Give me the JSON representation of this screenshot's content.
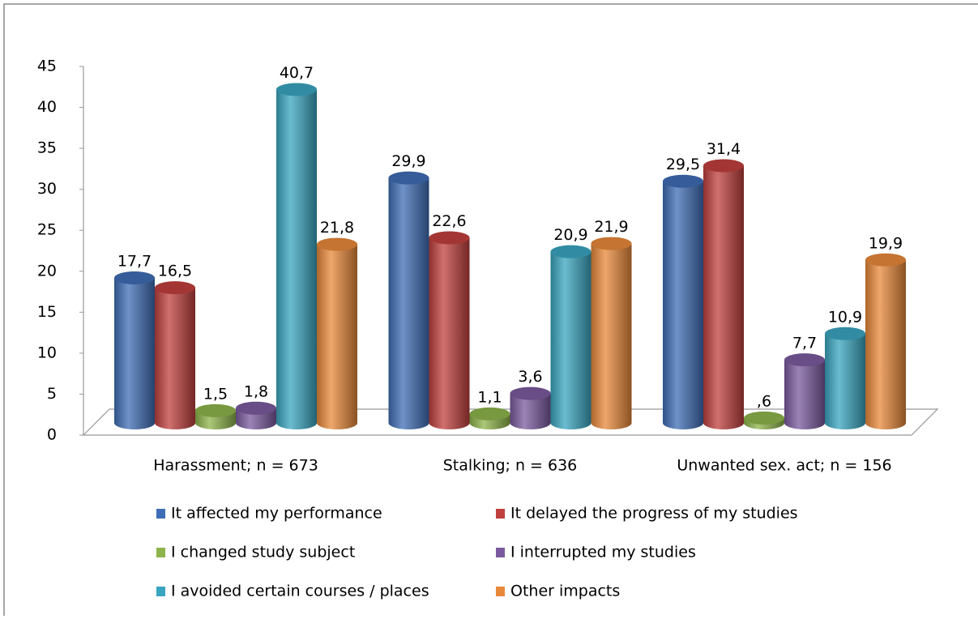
{
  "chart_data": {
    "type": "bar",
    "categories": [
      "Harassment; n = 673",
      "Stalking; n = 636",
      "Unwanted sex. act; n = 156"
    ],
    "series": [
      {
        "name": "It affected my performance",
        "color": "#3f6db5",
        "values": [
          17.7,
          29.9,
          29.5
        ],
        "value_labels": [
          "17,7",
          "29,9",
          "29,5"
        ]
      },
      {
        "name": "It delayed the progress of my studies",
        "color": "#c0403d",
        "values": [
          16.5,
          22.6,
          31.4
        ],
        "value_labels": [
          "16,5",
          "22,6",
          "31,4"
        ]
      },
      {
        "name": "I changed study subject",
        "color": "#8db44a",
        "values": [
          1.5,
          1.1,
          0.6
        ],
        "value_labels": [
          "1,5",
          "1,1",
          ",6"
        ]
      },
      {
        "name": "I interrupted my studies",
        "color": "#7a5a9e",
        "values": [
          1.8,
          3.6,
          7.7
        ],
        "value_labels": [
          "1,8",
          "3,6",
          "7,7"
        ]
      },
      {
        "name": "I avoided certain courses / places",
        "color": "#3aa5c0",
        "values": [
          40.7,
          20.9,
          10.9
        ],
        "value_labels": [
          "40,7",
          "20,9",
          "10,9"
        ]
      },
      {
        "name": "Other impacts",
        "color": "#e8883a",
        "values": [
          21.8,
          21.9,
          19.9
        ],
        "value_labels": [
          "21,8",
          "21,9",
          "19,9"
        ]
      }
    ],
    "ylim": [
      0,
      45
    ],
    "yticks": [
      0,
      5,
      10,
      15,
      20,
      25,
      30,
      35,
      40,
      45
    ],
    "legend": "bottom"
  }
}
